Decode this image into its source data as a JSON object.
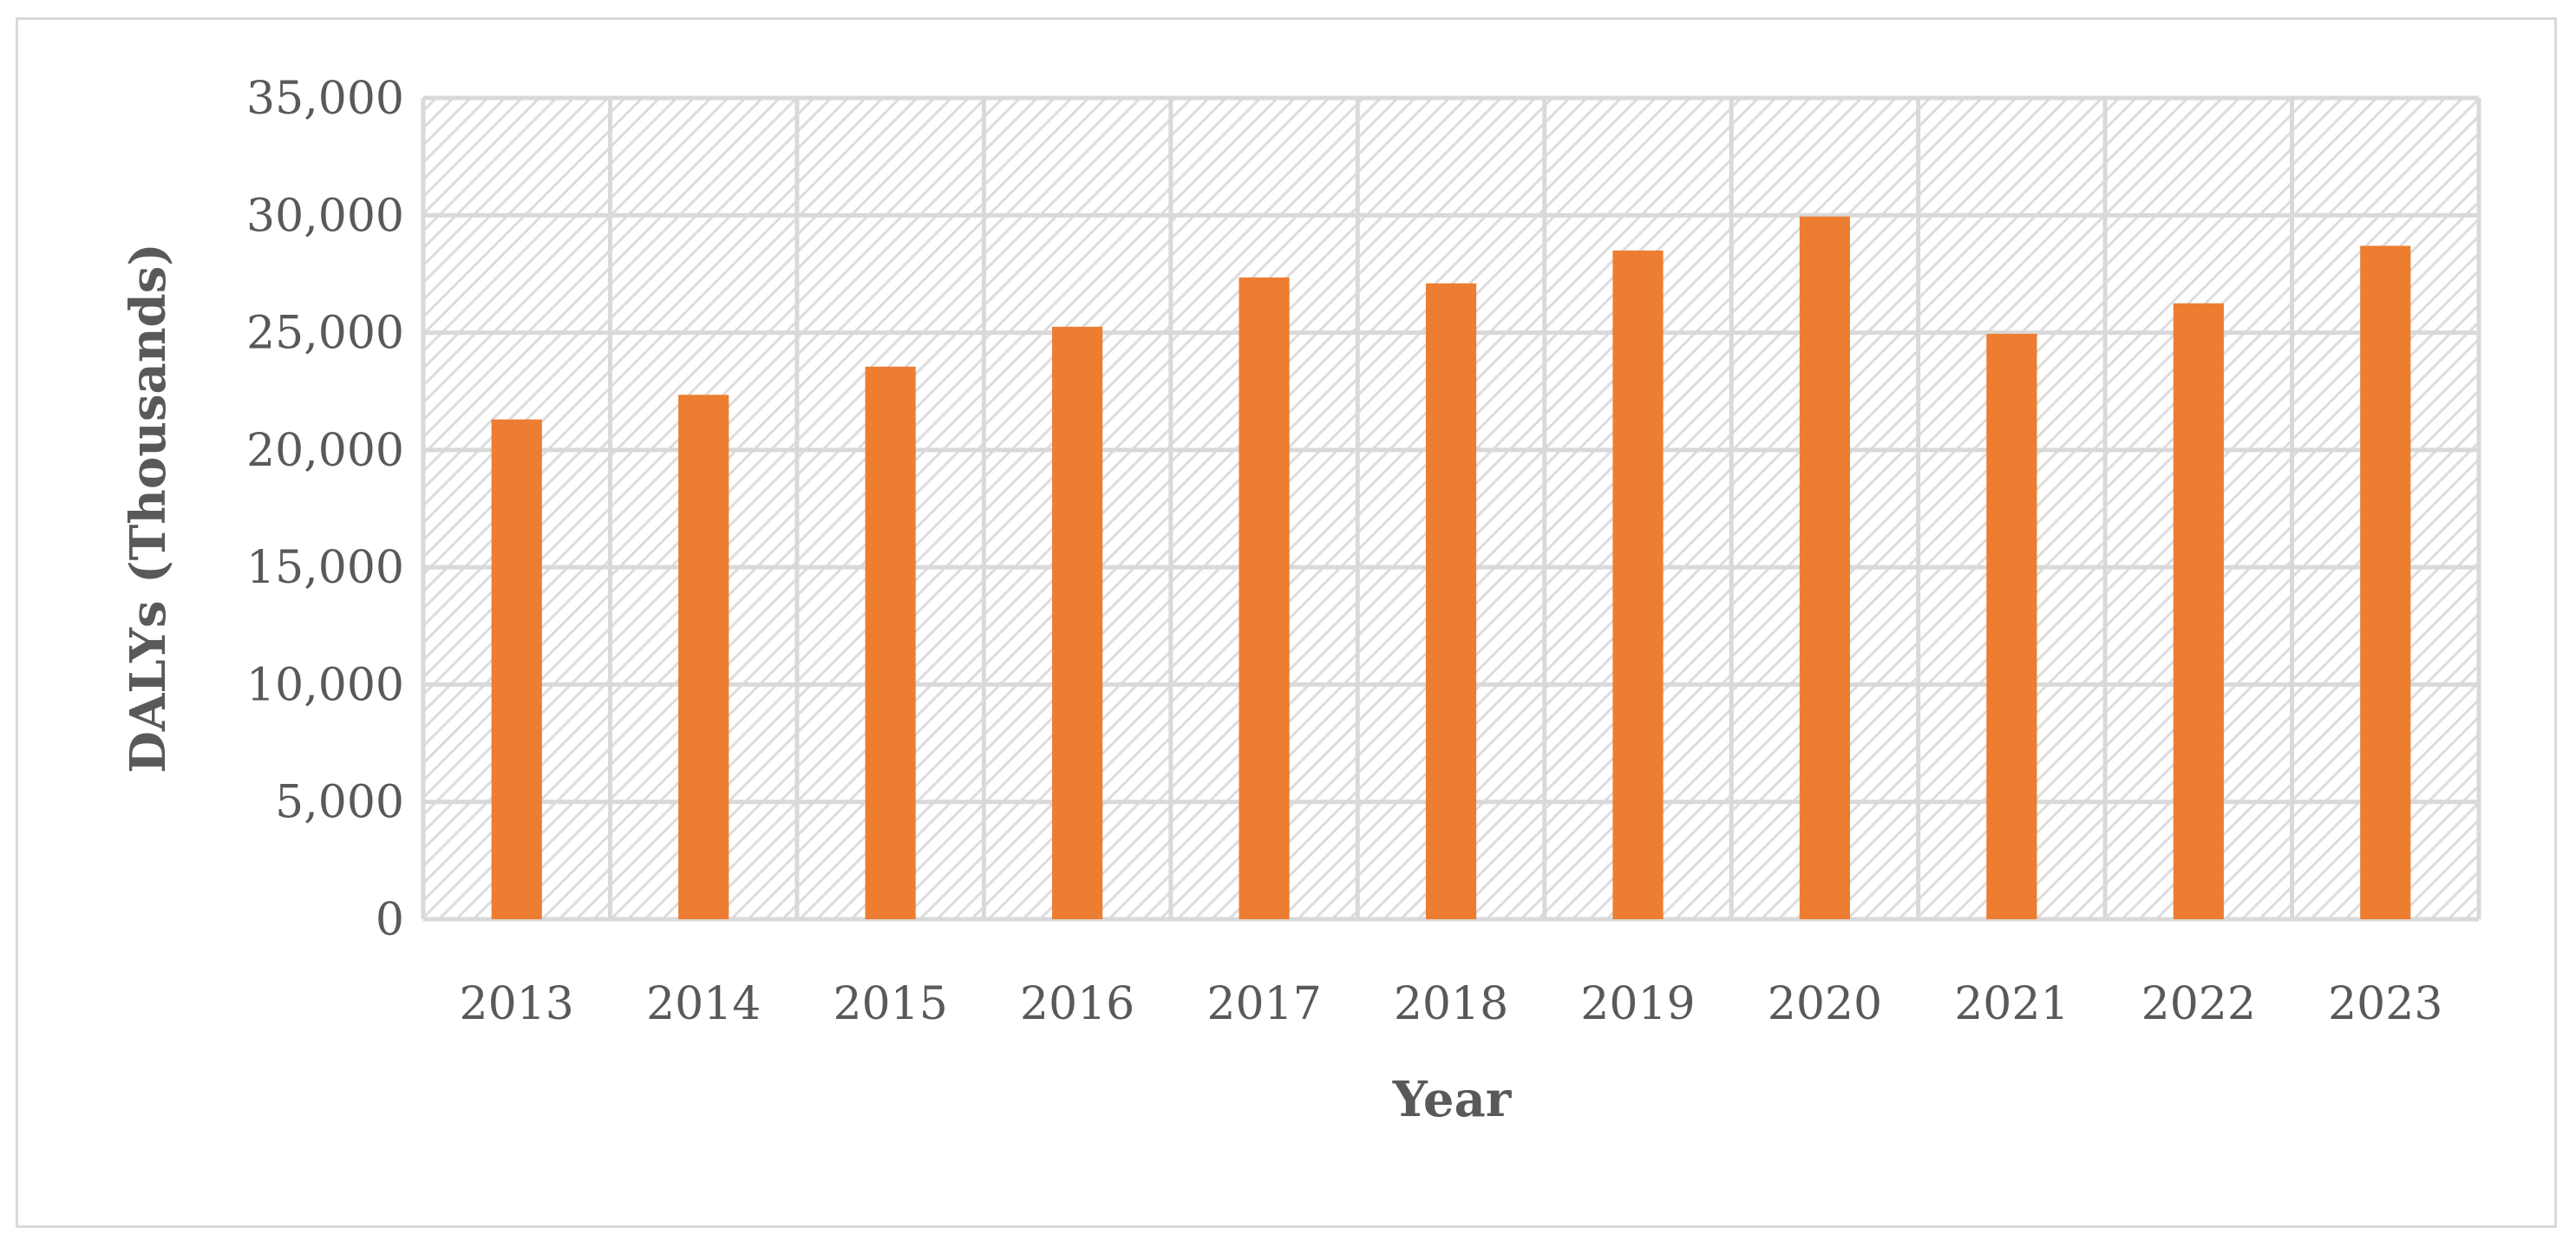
{
  "chart_data": {
    "type": "bar",
    "title": "",
    "xlabel": "Year",
    "ylabel": "DALYs (Thousands)",
    "categories": [
      "2013",
      "2014",
      "2015",
      "2016",
      "2017",
      "2018",
      "2019",
      "2020",
      "2021",
      "2022",
      "2023"
    ],
    "values": [
      21300,
      22350,
      23550,
      25250,
      27350,
      27100,
      28500,
      29950,
      24950,
      26250,
      28700
    ],
    "ylim": [
      0,
      35000
    ],
    "yticks": [
      0,
      5000,
      10000,
      15000,
      20000,
      25000,
      30000,
      35000
    ],
    "ytick_labels": [
      "0",
      "5,000",
      "10,000",
      "15,000",
      "20,000",
      "25,000",
      "30,000",
      "35,000"
    ],
    "grid": true,
    "legend": "none",
    "bar_color": "#ed7d31",
    "gridline_color": "#d9d9d9",
    "plot_pattern_color": "#dcdcdc"
  }
}
